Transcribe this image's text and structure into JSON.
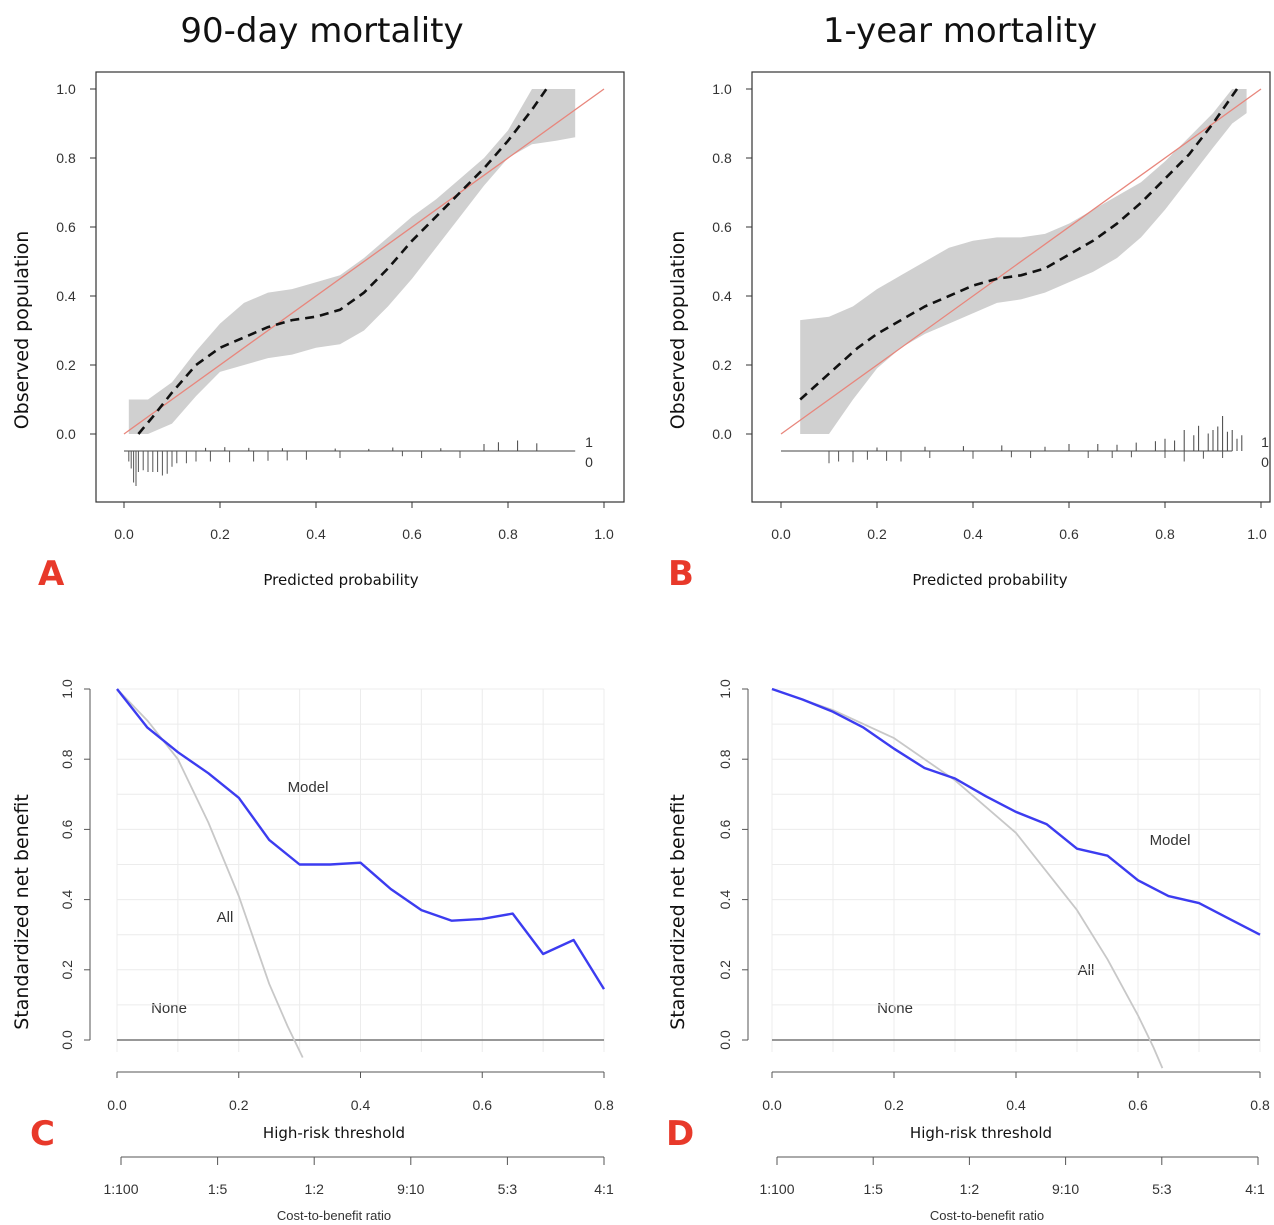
{
  "chart_data": [
    {
      "panel": "A",
      "type": "line",
      "title": "90-day mortality",
      "xlabel": "Predicted probability",
      "ylabel": "Observed population",
      "xlim": [
        0,
        1
      ],
      "ylim": [
        0,
        1
      ],
      "x_ticks": [
        "0.0",
        "0.2",
        "0.4",
        "0.6",
        "0.8",
        "1.0"
      ],
      "y_ticks": [
        "0.0",
        "0.2",
        "0.4",
        "0.6",
        "0.8",
        "1.0"
      ],
      "rug_labels": [
        "1",
        "0"
      ],
      "reference_line": {
        "x": [
          0,
          1
        ],
        "y": [
          0,
          1
        ],
        "color": "#e8867c"
      },
      "series": [
        {
          "x": [
            0.03,
            0.06,
            0.1,
            0.15,
            0.2,
            0.25,
            0.3,
            0.35,
            0.4,
            0.45,
            0.5,
            0.55,
            0.6,
            0.65,
            0.7,
            0.75,
            0.8,
            0.85,
            0.88
          ],
          "y": [
            0.0,
            0.05,
            0.12,
            0.2,
            0.25,
            0.28,
            0.31,
            0.33,
            0.34,
            0.36,
            0.41,
            0.48,
            0.56,
            0.63,
            0.7,
            0.77,
            0.85,
            0.94,
            1.0
          ],
          "style": "dashed",
          "color": "#111111"
        }
      ],
      "confidence_band": {
        "x": [
          0.01,
          0.05,
          0.1,
          0.15,
          0.2,
          0.25,
          0.3,
          0.35,
          0.4,
          0.45,
          0.5,
          0.55,
          0.6,
          0.65,
          0.7,
          0.75,
          0.8,
          0.85,
          0.9,
          0.94
        ],
        "lower": [
          0.0,
          0.0,
          0.03,
          0.11,
          0.18,
          0.2,
          0.22,
          0.23,
          0.25,
          0.26,
          0.3,
          0.37,
          0.45,
          0.54,
          0.63,
          0.72,
          0.8,
          0.84,
          0.85,
          0.86
        ],
        "upper": [
          0.1,
          0.1,
          0.15,
          0.24,
          0.32,
          0.38,
          0.41,
          0.42,
          0.44,
          0.46,
          0.51,
          0.57,
          0.63,
          0.68,
          0.74,
          0.8,
          0.88,
          1.0,
          1.0,
          1.0
        ],
        "color": "#d0d0d0"
      },
      "rug_up": [
        [
          0.17,
          0.009
        ],
        [
          0.21,
          0.011
        ],
        [
          0.26,
          0.009
        ],
        [
          0.33,
          0.008
        ],
        [
          0.44,
          0.007
        ],
        [
          0.51,
          0.006
        ],
        [
          0.56,
          0.01
        ],
        [
          0.66,
          0.008
        ],
        [
          0.75,
          0.02
        ],
        [
          0.78,
          0.025
        ],
        [
          0.82,
          0.03
        ],
        [
          0.86,
          0.022
        ]
      ],
      "rug_down": [
        [
          0.01,
          0.03
        ],
        [
          0.015,
          0.05
        ],
        [
          0.02,
          0.09
        ],
        [
          0.025,
          0.1
        ],
        [
          0.03,
          0.06
        ],
        [
          0.04,
          0.055
        ],
        [
          0.05,
          0.06
        ],
        [
          0.06,
          0.06
        ],
        [
          0.07,
          0.06
        ],
        [
          0.08,
          0.07
        ],
        [
          0.09,
          0.065
        ],
        [
          0.1,
          0.045
        ],
        [
          0.11,
          0.035
        ],
        [
          0.13,
          0.035
        ],
        [
          0.15,
          0.03
        ],
        [
          0.18,
          0.03
        ],
        [
          0.22,
          0.032
        ],
        [
          0.27,
          0.03
        ],
        [
          0.3,
          0.028
        ],
        [
          0.34,
          0.027
        ],
        [
          0.38,
          0.025
        ],
        [
          0.45,
          0.02
        ],
        [
          0.58,
          0.015
        ],
        [
          0.62,
          0.02
        ],
        [
          0.7,
          0.02
        ]
      ]
    },
    {
      "panel": "B",
      "type": "line",
      "title": "1-year mortality",
      "xlabel": "Predicted probability",
      "ylabel": "Observed population",
      "xlim": [
        0,
        1
      ],
      "ylim": [
        0,
        1
      ],
      "x_ticks": [
        "0.0",
        "0.2",
        "0.4",
        "0.6",
        "0.8",
        "1.0"
      ],
      "y_ticks": [
        "0.0",
        "0.2",
        "0.4",
        "0.6",
        "0.8",
        "1.0"
      ],
      "rug_labels": [
        "1",
        "0"
      ],
      "reference_line": {
        "x": [
          0,
          1
        ],
        "y": [
          0,
          1
        ],
        "color": "#e8867c"
      },
      "series": [
        {
          "x": [
            0.04,
            0.08,
            0.12,
            0.16,
            0.2,
            0.25,
            0.3,
            0.35,
            0.4,
            0.45,
            0.5,
            0.55,
            0.6,
            0.65,
            0.7,
            0.75,
            0.8,
            0.85,
            0.9,
            0.95
          ],
          "y": [
            0.1,
            0.15,
            0.2,
            0.25,
            0.29,
            0.33,
            0.37,
            0.4,
            0.43,
            0.45,
            0.46,
            0.48,
            0.52,
            0.56,
            0.61,
            0.67,
            0.74,
            0.81,
            0.9,
            1.0
          ],
          "style": "dashed",
          "color": "#111111"
        }
      ],
      "confidence_band": {
        "x": [
          0.04,
          0.1,
          0.15,
          0.2,
          0.25,
          0.3,
          0.35,
          0.4,
          0.45,
          0.5,
          0.55,
          0.6,
          0.65,
          0.7,
          0.75,
          0.8,
          0.85,
          0.9,
          0.94,
          0.97
        ],
        "lower": [
          0.0,
          0.0,
          0.1,
          0.19,
          0.25,
          0.29,
          0.32,
          0.35,
          0.38,
          0.39,
          0.41,
          0.44,
          0.47,
          0.51,
          0.57,
          0.65,
          0.74,
          0.83,
          0.9,
          0.93
        ],
        "upper": [
          0.33,
          0.34,
          0.37,
          0.42,
          0.46,
          0.5,
          0.54,
          0.56,
          0.57,
          0.57,
          0.58,
          0.61,
          0.65,
          0.69,
          0.73,
          0.79,
          0.86,
          0.93,
          1.0,
          1.0
        ],
        "color": "#d0d0d0"
      },
      "rug_up": [
        [
          0.2,
          0.01
        ],
        [
          0.3,
          0.012
        ],
        [
          0.38,
          0.014
        ],
        [
          0.46,
          0.016
        ],
        [
          0.55,
          0.012
        ],
        [
          0.6,
          0.02
        ],
        [
          0.66,
          0.02
        ],
        [
          0.7,
          0.018
        ],
        [
          0.74,
          0.024
        ],
        [
          0.78,
          0.028
        ],
        [
          0.8,
          0.035
        ],
        [
          0.82,
          0.03
        ],
        [
          0.84,
          0.06
        ],
        [
          0.86,
          0.045
        ],
        [
          0.87,
          0.072
        ],
        [
          0.89,
          0.05
        ],
        [
          0.9,
          0.06
        ],
        [
          0.91,
          0.07
        ],
        [
          0.92,
          0.1
        ],
        [
          0.93,
          0.055
        ],
        [
          0.94,
          0.06
        ],
        [
          0.95,
          0.035
        ],
        [
          0.96,
          0.045
        ]
      ],
      "rug_down": [
        [
          0.1,
          0.035
        ],
        [
          0.12,
          0.03
        ],
        [
          0.15,
          0.032
        ],
        [
          0.18,
          0.025
        ],
        [
          0.22,
          0.028
        ],
        [
          0.25,
          0.03
        ],
        [
          0.31,
          0.02
        ],
        [
          0.4,
          0.022
        ],
        [
          0.48,
          0.018
        ],
        [
          0.52,
          0.02
        ],
        [
          0.64,
          0.02
        ],
        [
          0.69,
          0.02
        ],
        [
          0.73,
          0.018
        ],
        [
          0.8,
          0.02
        ],
        [
          0.84,
          0.03
        ],
        [
          0.88,
          0.022
        ],
        [
          0.92,
          0.02
        ]
      ]
    },
    {
      "panel": "C",
      "type": "line",
      "xlabel": "High-risk threshold",
      "ylabel": "Standardized net benefit",
      "xlim": [
        0,
        0.8
      ],
      "ylim": [
        0,
        1
      ],
      "x_ticks": [
        "0.0",
        "0.2",
        "0.4",
        "0.6",
        "0.8"
      ],
      "y_ticks": [
        "0.0",
        "0.2",
        "0.4",
        "0.6",
        "0.8",
        "1.0"
      ],
      "secondary_axis": {
        "label": "Cost-to-benefit ratio",
        "ticks": [
          "1:100",
          "1:5",
          "1:2",
          "9:10",
          "5:3",
          "4:1"
        ]
      },
      "annotations": [
        "Model",
        "All",
        "None"
      ],
      "series": [
        {
          "name": "Model",
          "color": "#3c3cf0",
          "x": [
            0.0,
            0.05,
            0.1,
            0.15,
            0.2,
            0.25,
            0.3,
            0.35,
            0.4,
            0.45,
            0.5,
            0.55,
            0.6,
            0.65,
            0.7,
            0.75,
            0.8
          ],
          "y": [
            1.0,
            0.89,
            0.82,
            0.76,
            0.69,
            0.57,
            0.5,
            0.5,
            0.505,
            0.43,
            0.37,
            0.34,
            0.345,
            0.36,
            0.245,
            0.285,
            0.145
          ]
        },
        {
          "name": "All",
          "color": "#c8c8c8",
          "x": [
            0.0,
            0.05,
            0.1,
            0.15,
            0.2,
            0.25,
            0.28,
            0.305
          ],
          "y": [
            1.0,
            0.91,
            0.8,
            0.62,
            0.41,
            0.16,
            0.04,
            -0.05
          ]
        },
        {
          "name": "None",
          "color": "#777777",
          "x": [
            0.0,
            0.8
          ],
          "y": [
            0.0,
            0.0
          ]
        }
      ]
    },
    {
      "panel": "D",
      "type": "line",
      "xlabel": "High-risk threshold",
      "ylabel": "Standardized net benefit",
      "xlim": [
        0,
        0.8
      ],
      "ylim": [
        0,
        1
      ],
      "x_ticks": [
        "0.0",
        "0.2",
        "0.4",
        "0.6",
        "0.8"
      ],
      "y_ticks": [
        "0.0",
        "0.2",
        "0.4",
        "0.6",
        "0.8",
        "1.0"
      ],
      "secondary_axis": {
        "label": "Cost-to-benefit ratio",
        "ticks": [
          "1:100",
          "1:5",
          "1:2",
          "9:10",
          "5:3",
          "4:1"
        ]
      },
      "annotations": [
        "Model",
        "All",
        "None"
      ],
      "series": [
        {
          "name": "Model",
          "color": "#3c3cf0",
          "x": [
            0.0,
            0.05,
            0.1,
            0.15,
            0.2,
            0.25,
            0.3,
            0.35,
            0.4,
            0.45,
            0.5,
            0.55,
            0.6,
            0.65,
            0.7,
            0.75,
            0.8
          ],
          "y": [
            1.0,
            0.97,
            0.935,
            0.89,
            0.83,
            0.775,
            0.745,
            0.695,
            0.65,
            0.615,
            0.545,
            0.525,
            0.455,
            0.41,
            0.39,
            0.345,
            0.3
          ]
        },
        {
          "name": "All",
          "color": "#c8c8c8",
          "x": [
            0.0,
            0.1,
            0.2,
            0.3,
            0.4,
            0.5,
            0.55,
            0.6,
            0.625,
            0.64
          ],
          "y": [
            1.0,
            0.94,
            0.86,
            0.74,
            0.59,
            0.37,
            0.23,
            0.07,
            -0.02,
            -0.08
          ]
        },
        {
          "name": "None",
          "color": "#777777",
          "x": [
            0.0,
            0.8
          ],
          "y": [
            0.0,
            0.0
          ]
        }
      ]
    }
  ],
  "panel_letters": [
    "A",
    "B",
    "C",
    "D"
  ]
}
